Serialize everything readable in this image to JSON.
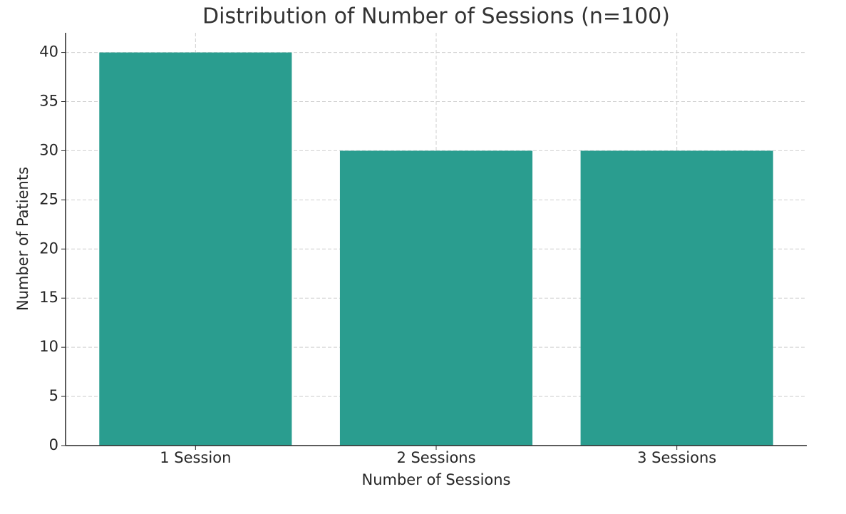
{
  "chart_data": {
    "type": "bar",
    "title": "Distribution of Number of Sessions (n=100)",
    "x_label": "Number of Sessions",
    "y_label": "Number of Patients",
    "categories": [
      "1 Session",
      "2 Sessions",
      "3 Sessions"
    ],
    "values": [
      40,
      30,
      30
    ],
    "color": "#2a9d8f",
    "ylim": [
      0,
      42
    ],
    "yticks": [
      0,
      5,
      10,
      15,
      20,
      25,
      30,
      35,
      40
    ],
    "grid": true
  }
}
